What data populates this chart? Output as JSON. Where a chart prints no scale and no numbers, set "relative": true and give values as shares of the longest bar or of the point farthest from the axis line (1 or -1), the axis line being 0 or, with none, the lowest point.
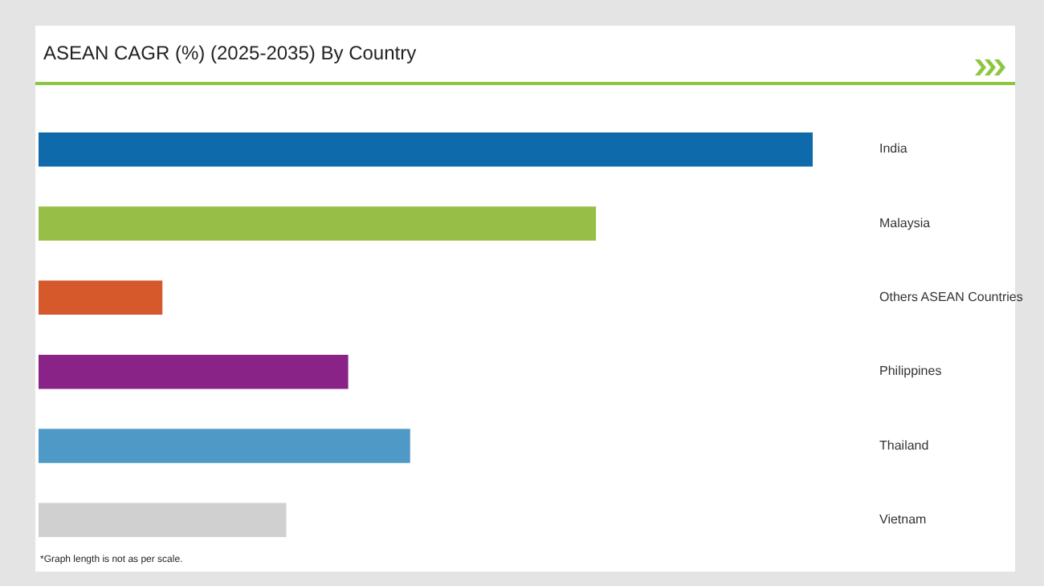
{
  "chart_data": {
    "type": "bar",
    "orientation": "horizontal",
    "relative": true,
    "title": "ASEAN CAGR (%) (2025-2035) By Country",
    "categories": [
      "India",
      "Malaysia",
      "Others ASEAN Countries",
      "Philippines",
      "Thailand",
      "Vietnam"
    ],
    "values": [
      1,
      0.72,
      0.16,
      0.4,
      0.48,
      0.32
    ],
    "colors": [
      "#0e6aab",
      "#97bf47",
      "#d5592a",
      "#8a2388",
      "#4f99c6",
      "#d0d0d0"
    ],
    "annotations": [
      "*Graph length is not as per scale."
    ]
  }
}
